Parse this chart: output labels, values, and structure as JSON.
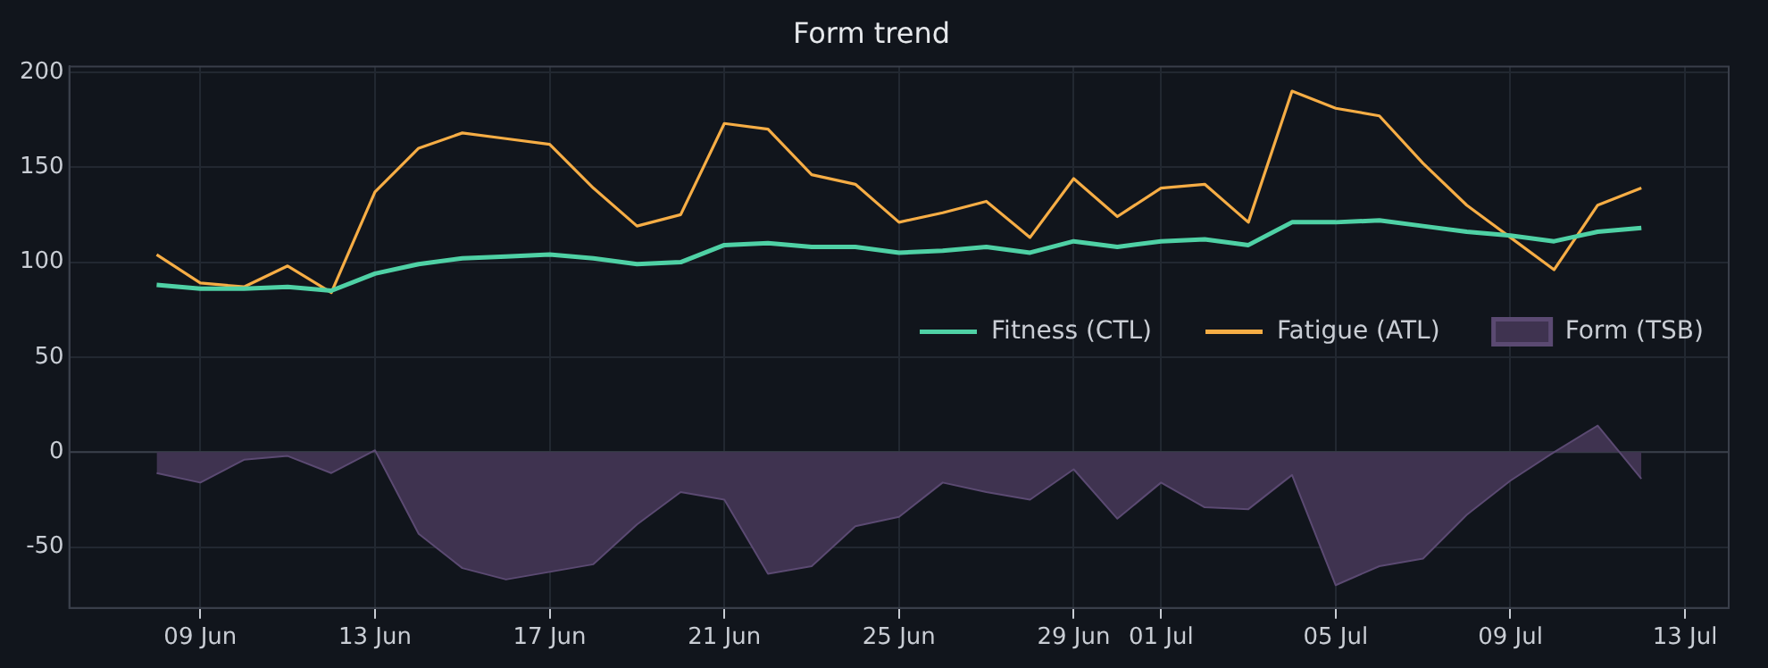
{
  "chart_data": {
    "type": "line",
    "title": "Form trend",
    "x": [
      "--06-08",
      "--06-09",
      "--06-10",
      "--06-11",
      "--06-12",
      "--06-13",
      "--06-14",
      "--06-15",
      "--06-16",
      "--06-17",
      "--06-18",
      "--06-19",
      "--06-20",
      "--06-21",
      "--06-22",
      "--06-23",
      "--06-24",
      "--06-25",
      "--06-26",
      "--06-27",
      "--06-28",
      "--06-29",
      "--06-30",
      "--07-01",
      "--07-02",
      "--07-03",
      "--07-04",
      "--07-05",
      "--07-06",
      "--07-07",
      "--07-08",
      "--07-09",
      "--07-10",
      "--07-11",
      "--07-12"
    ],
    "series": [
      {
        "name": "Fitness (CTL)",
        "type": "line",
        "color": "#4fd1a5",
        "values": [
          88,
          86,
          86,
          87,
          85,
          94,
          99,
          102,
          103,
          104,
          102,
          99,
          100,
          109,
          110,
          108,
          108,
          105,
          106,
          108,
          105,
          111,
          108,
          111,
          112,
          109,
          121,
          121,
          122,
          119,
          116,
          114,
          111,
          116,
          118
        ]
      },
      {
        "name": "Fatigue (ATL)",
        "type": "line",
        "color": "#f6ad45",
        "values": [
          104,
          89,
          87,
          98,
          84,
          137,
          160,
          168,
          165,
          162,
          139,
          119,
          125,
          173,
          170,
          146,
          141,
          121,
          126,
          132,
          113,
          144,
          124,
          139,
          141,
          121,
          190,
          181,
          177,
          152,
          130,
          113,
          96,
          130,
          139
        ]
      },
      {
        "name": "Form (TSB)",
        "type": "area",
        "color": "#3f3350",
        "values": [
          -11,
          -16,
          -4,
          -2,
          -11,
          1,
          -43,
          -61,
          -67,
          -63,
          -59,
          -38,
          -21,
          -25,
          -64,
          -60,
          -39,
          -34,
          -16,
          -21,
          -25,
          -9,
          -35,
          -16,
          -29,
          -30,
          -12,
          -70,
          -60,
          -56,
          -33,
          -15,
          0,
          14,
          -14
        ]
      }
    ],
    "xlim": [
      "--06-06",
      "--07-14"
    ],
    "xticks": [
      {
        "value": "--06-09",
        "label": "09 Jun"
      },
      {
        "value": "--06-13",
        "label": "13 Jun"
      },
      {
        "value": "--06-17",
        "label": "17 Jun"
      },
      {
        "value": "--06-21",
        "label": "21 Jun"
      },
      {
        "value": "--06-25",
        "label": "25 Jun"
      },
      {
        "value": "--06-29",
        "label": "29 Jun"
      },
      {
        "value": "--07-01",
        "label": "01 Jul"
      },
      {
        "value": "--07-05",
        "label": "05 Jul"
      },
      {
        "value": "--07-09",
        "label": "09 Jul"
      },
      {
        "value": "--07-13",
        "label": "13 Jul"
      }
    ],
    "ylim": [
      -82,
      203
    ],
    "yticks": [
      -50,
      0,
      50,
      100,
      150,
      200
    ],
    "ref_lines": [
      {
        "axis": "y",
        "value": 0,
        "color": "#3a3f4a"
      }
    ],
    "grid": true,
    "legend": "right"
  }
}
